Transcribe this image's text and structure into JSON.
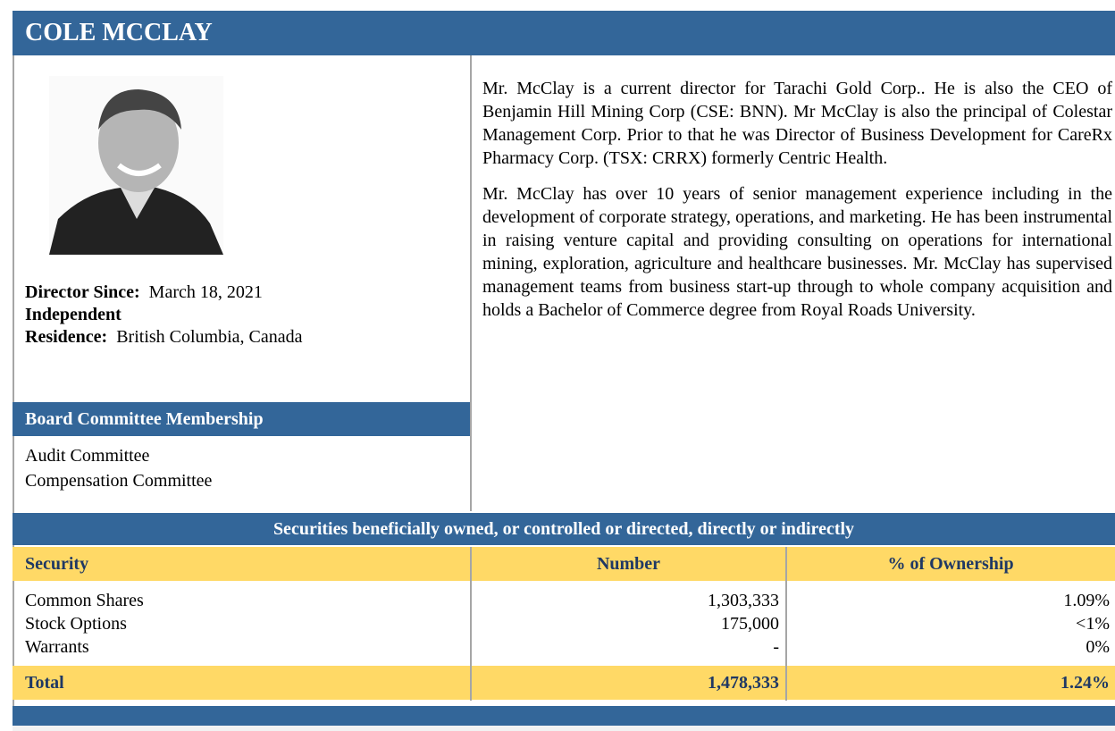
{
  "header": {
    "title": "COLE MCCLAY"
  },
  "profile": {
    "director_since_label": "Director Since:",
    "director_since": "March 18, 2021",
    "status": "Independent",
    "residence_label": "Residence:",
    "residence": "British Columbia, Canada"
  },
  "bio": [
    "Mr. McClay is a current director for Tarachi Gold Corp..  He is also the CEO of Benjamin Hill Mining Corp (CSE: BNN). Mr McClay is also the principal of Colestar Management Corp.  Prior to that he was Director of Business Development for CareRx Pharmacy Corp. (TSX: CRRX) formerly Centric Health.",
    "Mr. McClay has over 10 years of senior management experience including in the development of corporate strategy, operations, and marketing. He has been instrumental in raising venture capital and providing consulting on operations for international mining, exploration, agriculture and healthcare businesses. Mr. McClay has supervised management teams from business start-up through to whole company acquisition and holds a Bachelor of Commerce degree from Royal Roads University."
  ],
  "committees": {
    "title": "Board Committee Membership",
    "items": [
      "Audit Committee",
      "Compensation Committee"
    ]
  },
  "table": {
    "title": "Securities beneficially owned, or controlled or directed, directly or indirectly",
    "columns": [
      "Security",
      "Number",
      "% of Ownership"
    ],
    "rows": [
      [
        "Common Shares",
        "1,303,333",
        "1.09%"
      ],
      [
        "Stock Options",
        "175,000",
        "<1%"
      ],
      [
        "Warrants",
        "-",
        "0%"
      ]
    ],
    "total": [
      "Total",
      "1,478,333",
      "1.24%"
    ]
  }
}
